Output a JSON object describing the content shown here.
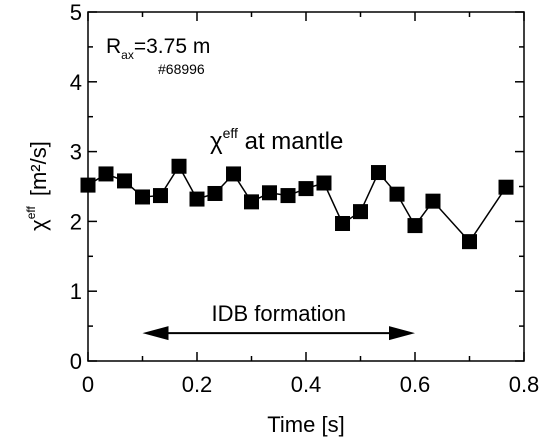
{
  "chart_data": {
    "type": "line",
    "marker": "square",
    "xlim": [
      0,
      0.8
    ],
    "ylim": [
      0,
      5
    ],
    "x_ticks": [
      "0",
      "0.2",
      "0.4",
      "0.6",
      "0.8"
    ],
    "y_ticks": [
      "0",
      "1",
      "2",
      "3",
      "4",
      "5"
    ],
    "xlabel": "Time   [s]",
    "ylabel": {
      "symbol": "χ",
      "sup": "eff",
      "unit": "[m²/s]"
    },
    "grid": false,
    "series": [
      {
        "points": [
          [
            0.0,
            2.52
          ],
          [
            0.033,
            2.68
          ],
          [
            0.067,
            2.58
          ],
          [
            0.1,
            2.35
          ],
          [
            0.133,
            2.37
          ],
          [
            0.167,
            2.79
          ],
          [
            0.2,
            2.32
          ],
          [
            0.233,
            2.4
          ],
          [
            0.267,
            2.68
          ],
          [
            0.3,
            2.28
          ],
          [
            0.333,
            2.41
          ],
          [
            0.367,
            2.37
          ],
          [
            0.4,
            2.47
          ],
          [
            0.433,
            2.55
          ],
          [
            0.467,
            1.97
          ],
          [
            0.5,
            2.14
          ],
          [
            0.533,
            2.7
          ],
          [
            0.567,
            2.39
          ],
          [
            0.6,
            1.94
          ],
          [
            0.633,
            2.29
          ],
          [
            0.7,
            1.71
          ],
          [
            0.767,
            2.49
          ]
        ]
      }
    ],
    "annotations": {
      "rax": {
        "base": "R",
        "sub": "ax",
        "rest": "=3.75 m"
      },
      "shot": "#68996",
      "series_label": {
        "symbol": "χ",
        "sup": "eff",
        "rest": " at mantle"
      },
      "idb": {
        "text": "IDB formation",
        "x_start": 0.1,
        "x_end": 0.6,
        "y": 0.4
      }
    }
  }
}
